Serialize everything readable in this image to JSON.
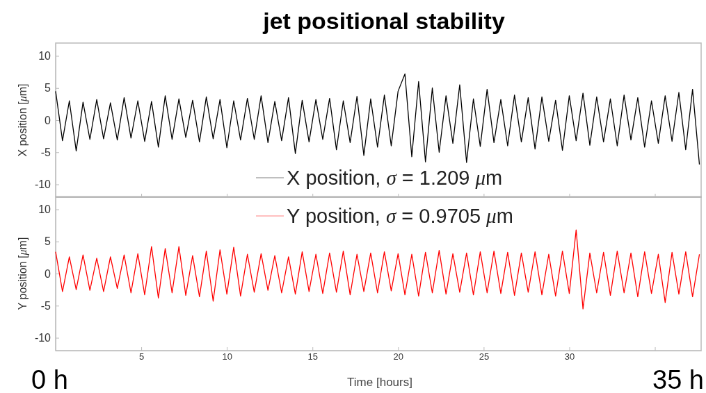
{
  "chart_data": [
    {
      "type": "line",
      "title": "jet positional stability",
      "ylabel": "X position [μm]",
      "xlim": [
        0,
        37.7
      ],
      "xticks": [
        5,
        10,
        15,
        20,
        25,
        30,
        35
      ],
      "ylim": [
        -12,
        12
      ],
      "yticks": [
        -10,
        -5,
        0,
        5,
        10
      ],
      "tick_labels": "y",
      "legend": "bottom",
      "series": [
        {
          "name": "X position, σ = 1.209 μm",
          "color": "#000000",
          "x": [
            0,
            0.4,
            0.8,
            1.2,
            1.6,
            2,
            2.4,
            2.8,
            3.2,
            3.6,
            4,
            4.4,
            4.8,
            5.2,
            5.6,
            6,
            6.4,
            6.8,
            7.2,
            7.6,
            8,
            8.4,
            8.8,
            9.2,
            9.6,
            10,
            10.4,
            10.8,
            11.2,
            11.6,
            12,
            12.4,
            12.8,
            13.2,
            13.6,
            14,
            14.4,
            14.8,
            15.2,
            15.6,
            16,
            16.4,
            16.8,
            17.2,
            17.6,
            18,
            18.4,
            18.8,
            19.2,
            19.6,
            20,
            20.4,
            20.8,
            21.2,
            21.6,
            22,
            22.4,
            22.8,
            23.2,
            23.6,
            24,
            24.4,
            24.8,
            25.2,
            25.6,
            26,
            26.4,
            26.8,
            27.2,
            27.6,
            28,
            28.4,
            28.8,
            29.2,
            29.6,
            30,
            30.4,
            30.8,
            31.2,
            31.6,
            32,
            32.4,
            32.8,
            33.2,
            33.6,
            34,
            34.4,
            34.8,
            35.2,
            35.6,
            36,
            36.4,
            36.8,
            37.2,
            37.6
          ],
          "values": [
            4.5,
            -3.2,
            3.0,
            -4.8,
            2.8,
            -3.0,
            3.2,
            -2.9,
            2.7,
            -3.1,
            3.5,
            -2.8,
            3.0,
            -3.3,
            2.9,
            -4.2,
            3.8,
            -3.0,
            3.3,
            -2.7,
            3.1,
            -3.4,
            3.6,
            -2.9,
            3.2,
            -4.3,
            3.0,
            -3.1,
            3.4,
            -3.0,
            3.8,
            -3.5,
            2.9,
            -3.2,
            3.5,
            -5.2,
            3.1,
            -3.4,
            3.2,
            -3.0,
            3.4,
            -4.6,
            3.0,
            -3.5,
            3.7,
            -5.5,
            3.3,
            -4.2,
            3.9,
            -4.0,
            4.5,
            7.2,
            -5.7,
            6.0,
            -6.5,
            5.0,
            -5.0,
            3.8,
            -3.6,
            5.5,
            -6.6,
            3.3,
            -4.1,
            4.8,
            -3.5,
            3.2,
            -4.0,
            3.9,
            -3.4,
            3.5,
            -4.5,
            3.6,
            -3.3,
            3.1,
            -4.7,
            3.8,
            -3.2,
            4.2,
            -3.9,
            3.6,
            -3.4,
            3.3,
            -4.0,
            3.9,
            -3.1,
            3.5,
            -4.2,
            3.0,
            -3.6,
            3.8,
            -3.3,
            4.3,
            -4.6,
            4.8,
            -6.9
          ]
        }
      ]
    },
    {
      "type": "line",
      "xlabel": "Time [hours]",
      "xlim": [
        0,
        37.7
      ],
      "xticks": [
        5,
        10,
        15,
        20,
        25,
        30,
        {
          "value": 35,
          "label": null
        }
      ],
      "ylim": [
        -12,
        12
      ],
      "yticks": [
        -10,
        -5,
        0,
        5,
        10
      ],
      "ylabel": "Y position [μm]",
      "legend": "top",
      "annotations": [
        "0 h",
        "35 h"
      ],
      "series": [
        {
          "name": "Y position, σ = 0.9705 μm",
          "color": "#ff0000",
          "x": [
            0,
            0.4,
            0.8,
            1.2,
            1.6,
            2,
            2.4,
            2.8,
            3.2,
            3.6,
            4,
            4.4,
            4.8,
            5.2,
            5.6,
            6,
            6.4,
            6.8,
            7.2,
            7.6,
            8,
            8.4,
            8.8,
            9.2,
            9.6,
            10,
            10.4,
            10.8,
            11.2,
            11.6,
            12,
            12.4,
            12.8,
            13.2,
            13.6,
            14,
            14.4,
            14.8,
            15.2,
            15.6,
            16,
            16.4,
            16.8,
            17.2,
            17.6,
            18,
            18.4,
            18.8,
            19.2,
            19.6,
            20,
            20.4,
            20.8,
            21.2,
            21.6,
            22,
            22.4,
            22.8,
            23.2,
            23.6,
            24,
            24.4,
            24.8,
            25.2,
            25.6,
            26,
            26.4,
            26.8,
            27.2,
            27.6,
            28,
            28.4,
            28.8,
            29.2,
            29.6,
            30,
            30.4,
            30.8,
            31.2,
            31.6,
            32,
            32.4,
            32.8,
            33.2,
            33.6,
            34,
            34.4,
            34.8,
            35.2,
            35.6,
            36,
            36.4,
            36.8,
            37.2,
            37.6
          ],
          "values": [
            3.4,
            -2.8,
            2.6,
            -2.5,
            2.9,
            -2.6,
            2.4,
            -2.8,
            2.6,
            -2.3,
            2.9,
            -3.0,
            3.1,
            -3.3,
            4.2,
            -3.8,
            3.9,
            -3.0,
            4.2,
            -3.4,
            2.8,
            -3.6,
            3.5,
            -4.3,
            3.7,
            -3.2,
            4.1,
            -3.5,
            3.0,
            -2.9,
            3.1,
            -2.6,
            2.8,
            -3.0,
            2.6,
            -3.2,
            3.4,
            -2.8,
            3.0,
            -3.1,
            3.2,
            -2.9,
            3.5,
            -3.3,
            3.0,
            -2.8,
            3.2,
            -3.0,
            3.4,
            -2.7,
            3.1,
            -3.3,
            3.0,
            -3.5,
            3.3,
            -3.0,
            3.6,
            -3.2,
            3.1,
            -2.9,
            3.2,
            -3.3,
            3.4,
            -3.0,
            3.5,
            -3.1,
            3.3,
            -3.4,
            3.2,
            -2.9,
            3.4,
            -3.3,
            3.0,
            -3.5,
            3.5,
            -3.1,
            6.8,
            -5.5,
            3.2,
            -3.0,
            3.3,
            -3.4,
            3.5,
            -3.0,
            3.2,
            -3.6,
            3.4,
            -3.1,
            3.0,
            -4.5,
            3.3,
            -3.2,
            3.4,
            -3.6,
            3.0
          ]
        }
      ]
    }
  ]
}
